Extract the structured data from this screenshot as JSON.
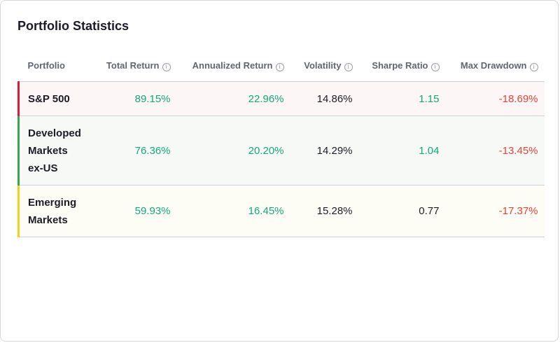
{
  "title": "Portfolio Statistics",
  "columns": [
    "Portfolio",
    "Total Return",
    "Annualized Return",
    "Volatility",
    "Sharpe Ratio",
    "Max Drawdown"
  ],
  "rows": [
    {
      "name": "S&P 500",
      "total_return": "89.15%",
      "annualized_return": "22.96%",
      "volatility": "14.86%",
      "sharpe_ratio": "1.15",
      "max_drawdown": "-18.69%",
      "accent": "#e0193f",
      "bg": "#fcf6f6",
      "sharpe_class": "pos"
    },
    {
      "name": "Developed Markets ex-US",
      "total_return": "76.36%",
      "annualized_return": "20.20%",
      "volatility": "14.29%",
      "sharpe_ratio": "1.04",
      "max_drawdown": "-13.45%",
      "accent": "#34a84a",
      "bg": "#f6f9f6",
      "sharpe_class": "pos"
    },
    {
      "name": "Emerging Markets",
      "total_return": "59.93%",
      "annualized_return": "16.45%",
      "volatility": "15.28%",
      "sharpe_ratio": "0.77",
      "max_drawdown": "-17.37%",
      "accent": "#f3d01a",
      "bg": "#fefdf5",
      "sharpe_class": "neu"
    }
  ],
  "colors": {
    "positive": "#14a87c",
    "negative": "#e8443a"
  }
}
